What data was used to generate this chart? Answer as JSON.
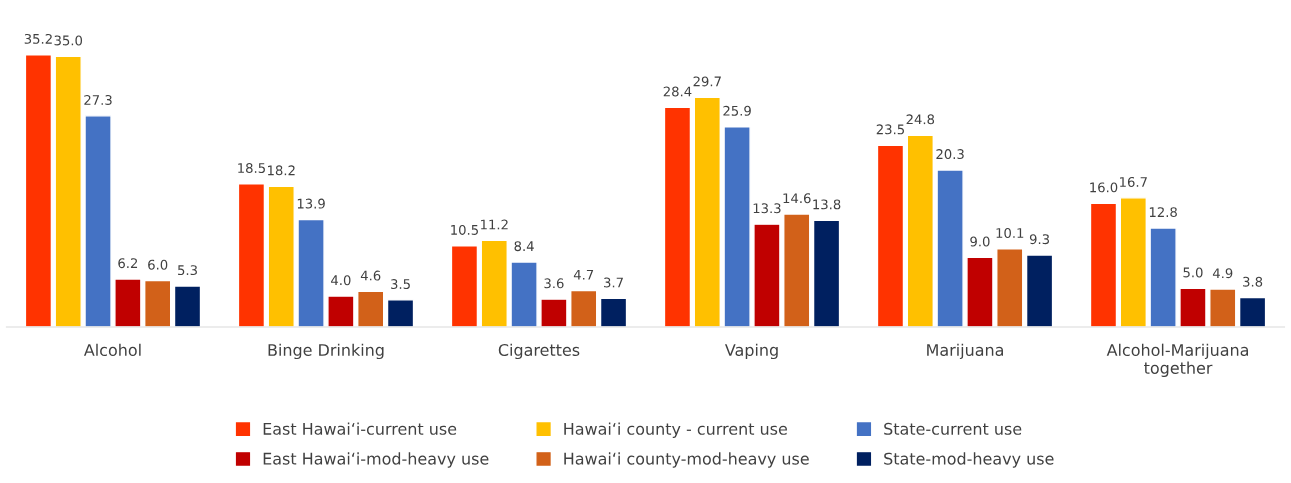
{
  "chart_data": {
    "type": "bar",
    "categories": [
      "Alcohol",
      "Binge Drinking",
      "Cigarettes",
      "Vaping",
      "Marijuana",
      "Alcohol-Marijuana\ntogether"
    ],
    "series": [
      {
        "name": "East Hawaiʻi-current use",
        "color": "#ff3300",
        "values": [
          35.2,
          18.5,
          10.5,
          28.4,
          23.5,
          16.0
        ],
        "value_labels": [
          "35.2",
          "18.5",
          "10.5",
          "28.4",
          "23.5",
          "16.0"
        ]
      },
      {
        "name": "Hawaiʻi county - current use",
        "color": "#ffc000",
        "values": [
          35.0,
          18.2,
          11.2,
          29.7,
          24.8,
          16.7
        ],
        "value_labels": [
          "35.0",
          "18.2",
          "11.2",
          "29.7",
          "24.8",
          "16.7"
        ]
      },
      {
        "name": "State-current use",
        "color": "#4472c4",
        "values": [
          27.3,
          13.9,
          8.4,
          25.9,
          20.3,
          12.8
        ],
        "value_labels": [
          "27.3",
          "13.9",
          "8.4",
          "25.9",
          "20.3",
          "12.8"
        ]
      },
      {
        "name": "East Hawaiʻi-mod-heavy use",
        "color": "#c00000",
        "values": [
          6.2,
          4.0,
          3.6,
          13.3,
          9.0,
          5.0
        ],
        "value_labels": [
          "6.2",
          "4.0",
          "3.6",
          "13.3",
          "9.0",
          "5.0"
        ]
      },
      {
        "name": "Hawaiʻi county-mod-heavy use",
        "color": "#d26119",
        "values": [
          6.0,
          4.6,
          4.7,
          14.6,
          10.1,
          4.9
        ],
        "value_labels": [
          "6.0",
          "4.6",
          "4.7",
          "14.6",
          "10.1",
          "4.9"
        ]
      },
      {
        "name": "State-mod-heavy use",
        "color": "#002060",
        "values": [
          5.3,
          3.5,
          3.7,
          13.8,
          9.3,
          3.8
        ],
        "value_labels": [
          "5.3",
          "3.5",
          "3.7",
          "13.8",
          "9.3",
          "3.8"
        ]
      }
    ],
    "grid": false,
    "legend": "bottom"
  }
}
